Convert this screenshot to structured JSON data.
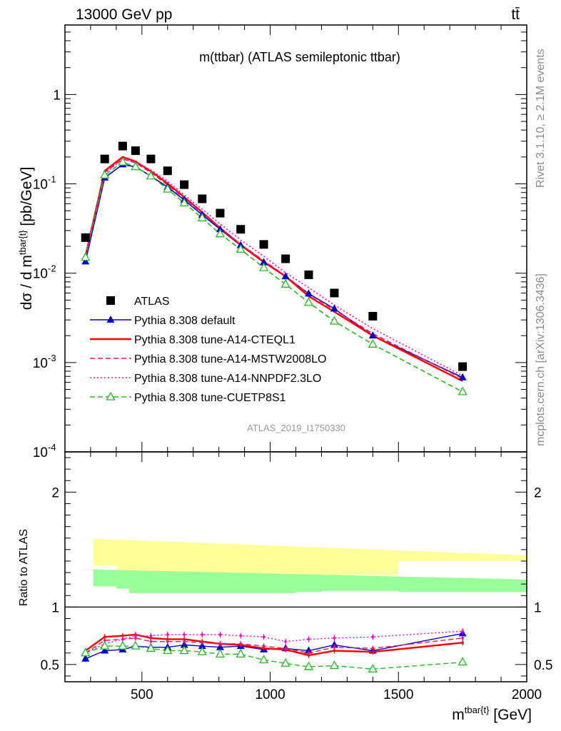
{
  "header": {
    "left": "13000 GeV pp",
    "right": "tt̄"
  },
  "side_labels": {
    "rivet": "Rivet 3.1.10, ≥ 2.1M events",
    "mcplots": "mcplots.cern.ch [arXiv:1306.3436]"
  },
  "chart_data": [
    {
      "type": "line",
      "title": "m(ttbar) (ATLAS semileptonic ttbar)",
      "xlabel": "m^{tbar{t}} [GeV]",
      "ylabel": "dσ / d m^{tbar{t}} [pb/GeV]",
      "analysis_tag": "ATLAS_2019_I1750330",
      "yscale": "log",
      "xlim": [
        200,
        2000
      ],
      "ylim": [
        0.0001,
        6
      ],
      "x_ticks": [
        500,
        1000,
        1500,
        2000
      ],
      "y_tick_labels": [
        "10^-4",
        "10^-3",
        "10^-2",
        "10^-1",
        "1"
      ],
      "x": [
        280,
        355,
        425,
        475,
        535,
        600,
        665,
        735,
        805,
        885,
        975,
        1060,
        1150,
        1250,
        1400,
        1750
      ],
      "bin_edges": [
        250,
        310,
        400,
        450,
        500,
        570,
        630,
        700,
        770,
        840,
        930,
        1020,
        1100,
        1200,
        1300,
        1500,
        2000
      ],
      "legend_position": "lower-left",
      "series": [
        {
          "name": "ATLAS",
          "color": "#000000",
          "marker": "square",
          "style": "none",
          "values": [
            0.025,
            0.19,
            0.265,
            0.235,
            0.19,
            0.14,
            0.098,
            0.068,
            0.047,
            0.031,
            0.021,
            0.0145,
            0.0096,
            0.006,
            0.0033,
            0.0009
          ]
        },
        {
          "name": "Pythia 8.308 default",
          "color": "#0000cc",
          "marker": "triangle",
          "style": "solid",
          "values": [
            0.0135,
            0.117,
            0.165,
            0.155,
            0.122,
            0.092,
            0.066,
            0.045,
            0.031,
            0.0205,
            0.0132,
            0.0092,
            0.0059,
            0.004,
            0.002,
            0.00068
          ]
        },
        {
          "name": "Pythia 8.308 tune-A14-CTEQL1",
          "color": "#ff0000",
          "marker": "none",
          "style": "solid",
          "values": [
            0.0155,
            0.14,
            0.2,
            0.178,
            0.138,
            0.101,
            0.071,
            0.048,
            0.032,
            0.0208,
            0.0134,
            0.0092,
            0.0055,
            0.0037,
            0.002,
            0.00062
          ]
        },
        {
          "name": "Pythia 8.308 tune-A14-MSTW2008LO",
          "color": "#ee1166",
          "marker": "none",
          "style": "dashed",
          "values": [
            0.015,
            0.135,
            0.19,
            0.172,
            0.134,
            0.097,
            0.069,
            0.047,
            0.032,
            0.021,
            0.0138,
            0.0093,
            0.0058,
            0.0039,
            0.0021,
            0.00066
          ]
        },
        {
          "name": "Pythia 8.308 tune-A14-NNPDF2.3LO",
          "color": "#ff00cc",
          "marker": "none",
          "style": "dotted",
          "values": [
            0.015,
            0.13,
            0.19,
            0.176,
            0.143,
            0.107,
            0.075,
            0.052,
            0.0355,
            0.0235,
            0.0155,
            0.0101,
            0.0069,
            0.0044,
            0.0024,
            0.00071
          ]
        },
        {
          "name": "Pythia 8.308 tune-CUETP8S1",
          "color": "#22bb22",
          "marker": "triangle-open",
          "style": "dashed",
          "values": [
            0.015,
            0.125,
            0.175,
            0.155,
            0.122,
            0.087,
            0.061,
            0.0415,
            0.0275,
            0.0185,
            0.0115,
            0.0075,
            0.0047,
            0.0029,
            0.0016,
            0.00047
          ]
        }
      ]
    },
    {
      "type": "line",
      "ylabel": "Ratio to ATLAS",
      "xlim": [
        200,
        2000
      ],
      "ylim": [
        0.35,
        2.35
      ],
      "y_ticks": [
        0.5,
        1,
        2
      ],
      "x_ticks": [
        500,
        1000,
        1500,
        2000
      ],
      "x": [
        280,
        355,
        425,
        475,
        535,
        600,
        665,
        735,
        805,
        885,
        975,
        1060,
        1150,
        1250,
        1400,
        1750
      ],
      "bin_edges": [
        250,
        310,
        400,
        450,
        500,
        570,
        630,
        700,
        770,
        840,
        930,
        1020,
        1100,
        1200,
        1300,
        1500,
        2000
      ],
      "band_green": {
        "color": "#99ff99",
        "half_widths": [
          0.33,
          0.18,
          0.16,
          0.12,
          0.12,
          0.12,
          0.12,
          0.12,
          0.12,
          0.12,
          0.12,
          0.12,
          0.13,
          0.14,
          0.14,
          0.13,
          0.24
        ]
      },
      "band_yellow": {
        "color": "#ffff99",
        "half_widths": [
          0.6,
          0.36,
          0.25,
          0.2,
          0.18,
          0.17,
          0.17,
          0.17,
          0.17,
          0.18,
          0.2,
          0.23,
          0.23,
          0.25,
          0.28,
          0.4,
          0.45
        ]
      },
      "series": [
        {
          "name": "Pythia 8.308 default",
          "color": "#0000cc",
          "marker": "triangle",
          "style": "solid",
          "values": [
            0.55,
            0.62,
            0.63,
            0.66,
            0.65,
            0.65,
            0.67,
            0.66,
            0.65,
            0.66,
            0.63,
            0.64,
            0.62,
            0.67,
            0.62,
            0.77
          ]
        },
        {
          "name": "Pythia 8.308 tune-A14-CTEQL1",
          "color": "#ff0000",
          "marker": "none",
          "style": "solid",
          "values": [
            0.62,
            0.74,
            0.75,
            0.76,
            0.73,
            0.72,
            0.72,
            0.7,
            0.68,
            0.67,
            0.64,
            0.63,
            0.58,
            0.62,
            0.61,
            0.69
          ]
        },
        {
          "name": "Pythia 8.308 tune-A14-MSTW2008LO",
          "color": "#ee1166",
          "marker": "none",
          "style": "dashed",
          "values": [
            0.6,
            0.71,
            0.72,
            0.73,
            0.7,
            0.7,
            0.7,
            0.69,
            0.68,
            0.68,
            0.66,
            0.64,
            0.6,
            0.65,
            0.64,
            0.73
          ]
        },
        {
          "name": "Pythia 8.308 tune-A14-NNPDF2.3LO",
          "color": "#ff00cc",
          "marker": "none",
          "style": "dotted",
          "values": [
            0.6,
            0.68,
            0.72,
            0.75,
            0.75,
            0.76,
            0.76,
            0.76,
            0.76,
            0.75,
            0.74,
            0.7,
            0.72,
            0.73,
            0.74,
            0.79
          ]
        },
        {
          "name": "Pythia 8.308 tune-CUETP8S1",
          "color": "#22bb22",
          "marker": "triangle-open",
          "style": "dashed",
          "values": [
            0.6,
            0.66,
            0.66,
            0.66,
            0.64,
            0.62,
            0.62,
            0.61,
            0.59,
            0.59,
            0.54,
            0.51,
            0.48,
            0.49,
            0.46,
            0.52
          ]
        }
      ]
    }
  ]
}
